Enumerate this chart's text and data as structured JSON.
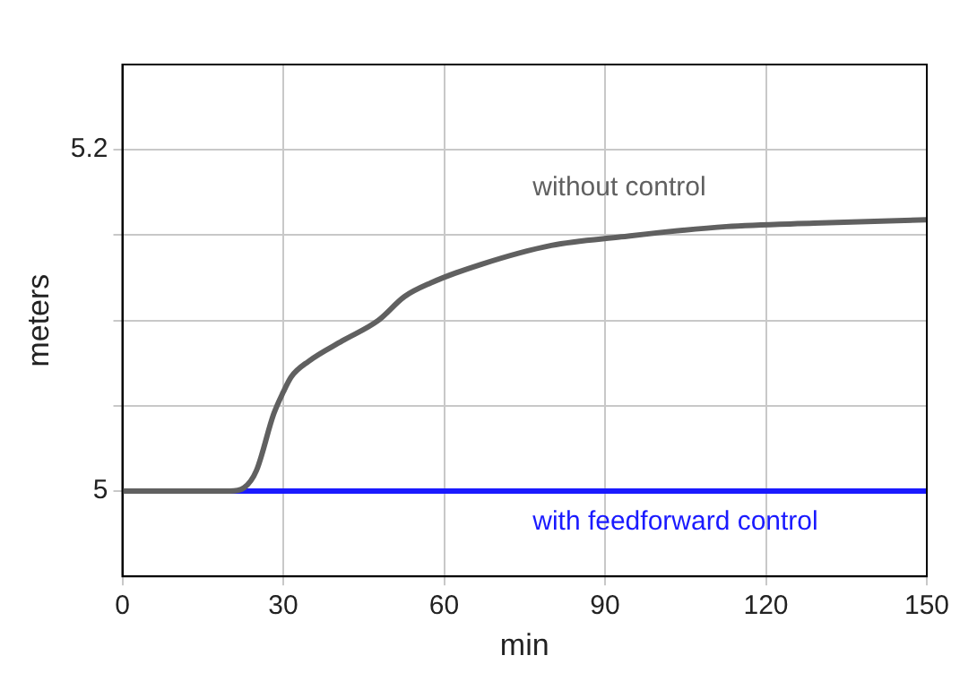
{
  "chart_data": {
    "type": "line",
    "xlabel": "min",
    "ylabel": "meters",
    "xlim": [
      0,
      150
    ],
    "xticks": [
      0,
      30,
      60,
      90,
      120,
      150
    ],
    "ylim": [
      4.95,
      5.25
    ],
    "yticks": [
      5,
      {
        "value": 5.05,
        "label": null
      },
      {
        "value": 5.1,
        "label": null
      },
      {
        "value": 5.15,
        "label": null
      },
      5.2
    ],
    "grid": true,
    "legend": false,
    "marker": "none",
    "line_style": "solid",
    "series": [
      {
        "name": "without control",
        "color": "#606060",
        "x": [
          0,
          20,
          22.7,
          25,
          28.2,
          30,
          31.5,
          34.7,
          41,
          47.7,
          52.6,
          57.5,
          67,
          80,
          93,
          112.6,
          129,
          150
        ],
        "values": [
          5,
          5,
          5.002,
          5.012,
          5.045,
          5.058,
          5.067,
          5.076,
          5.088,
          5.1,
          5.114,
          5.122,
          5.133,
          5.144,
          5.149,
          5.155,
          5.157,
          5.159
        ]
      },
      {
        "name": "with feedforward control",
        "color": "#1a1aff",
        "x": [
          0,
          150
        ],
        "values": [
          5,
          5
        ]
      }
    ]
  }
}
